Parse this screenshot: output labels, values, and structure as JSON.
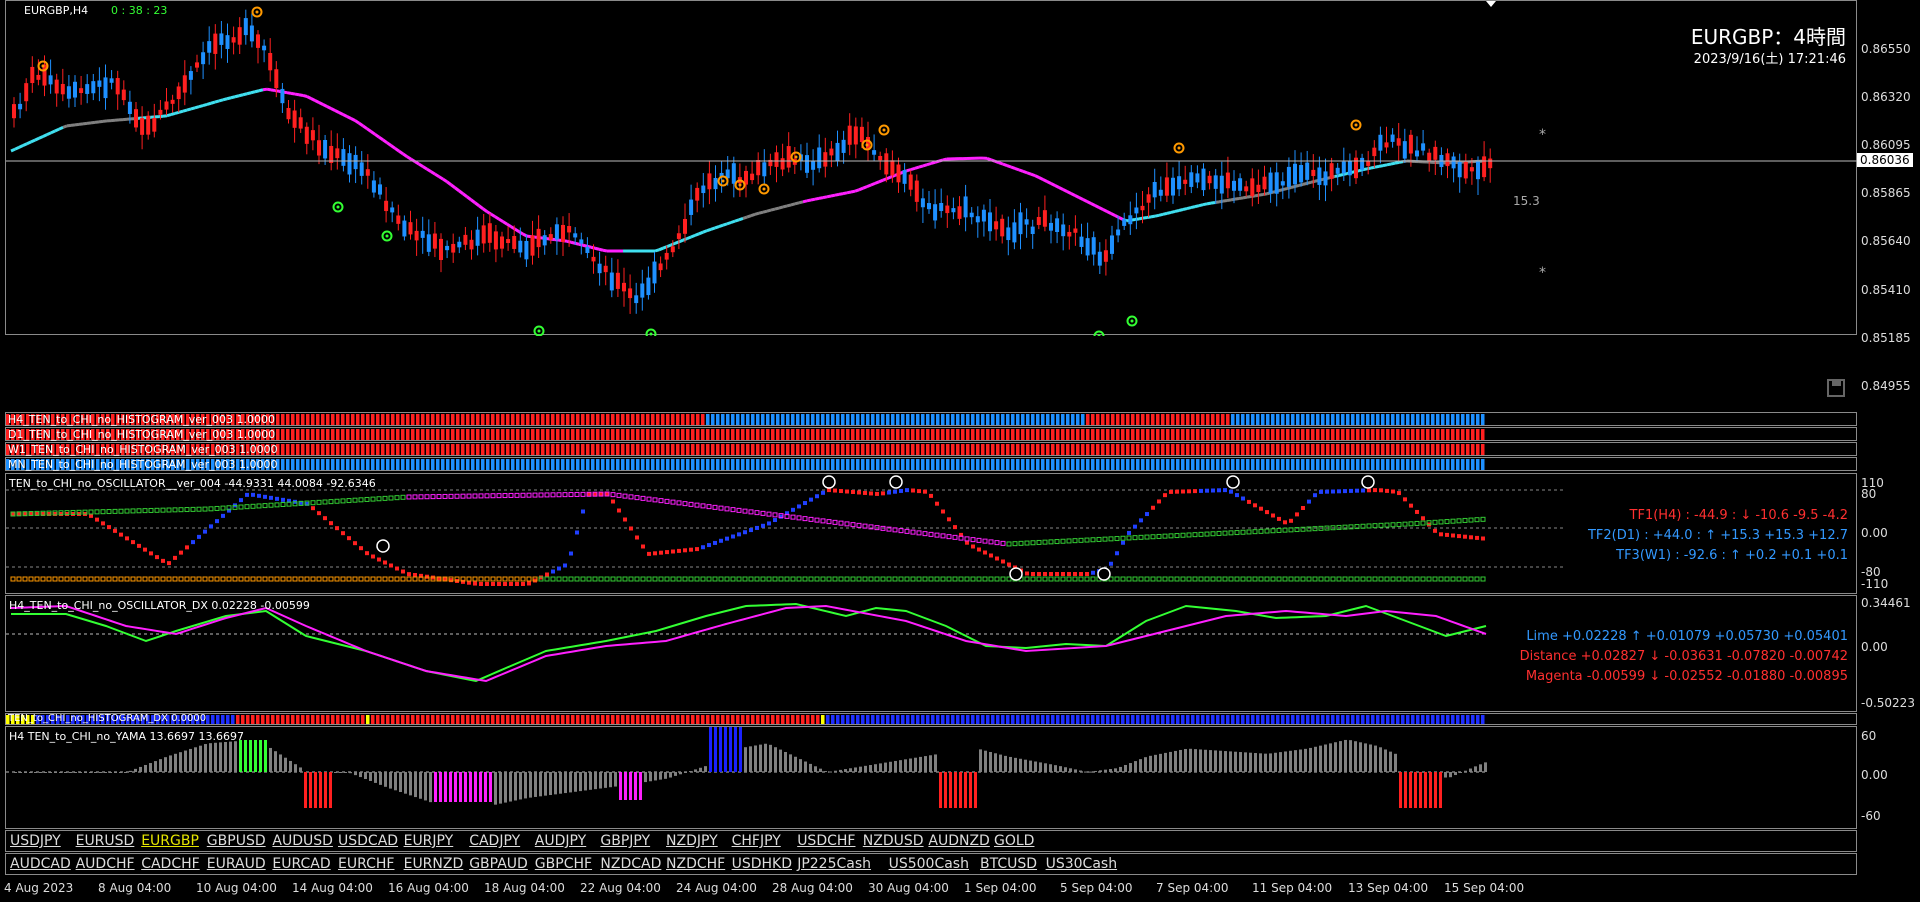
{
  "main": {
    "symbol_tf": "EURGBP,H4",
    "countdown": "0 : 38 : 23",
    "title": "EURGBP：4時間",
    "datetime": "2023/9/16(土) 17:21:46",
    "current_price": "0.86036",
    "right_label": "15.3",
    "price_ticks": [
      "0.86550",
      "0.86320",
      "0.86095",
      "0.85865",
      "0.85640",
      "0.85410",
      "0.85185",
      "0.84955"
    ],
    "save_icon": "floppy-disk-icon"
  },
  "histograms": [
    {
      "label": "H4_TEN_to_CHI_no_HISTOGRAM_ver_003 1.0000"
    },
    {
      "label": "D1_TEN_to_CHI_no_HISTOGRAM_ver_003 1.0000"
    },
    {
      "label": "W1_TEN_to_CHI_no_HISTOGRAM_ver_003 1.0000"
    },
    {
      "label": "MN_TEN_to_CHI_no_HISTOGRAM_ver_003 1.0000"
    }
  ],
  "oscillator": {
    "title": "TEN_to_CHI_no_OSCILLATOR__ver_004 -44.9331 44.0084 -92.6346",
    "tf1": "TF1(H4) : -44.9 : ↓  -10.6  -9.5  -4.2",
    "tf2": "TF2(D1) : +44.0 : ↑  +15.3 +15.3 +12.7",
    "tf3": "TF3(W1) : -92.6 : ↑  +0.2  +0.1  +0.1",
    "ticks": [
      "110",
      "80",
      "0.00",
      "-80",
      "-110"
    ]
  },
  "oscillator_dx": {
    "title": "H4_TEN_to_CHI_no_OSCILLATOR_DX 0.02228 -0.00599",
    "lime": "Lime +0.02228 ↑  +0.01079 +0.05730 +0.05401",
    "distance": "Distance +0.02827 ↓  -0.03631 -0.07820 -0.00742",
    "magenta": "Magenta -0.00599 ↓  -0.02552 -0.01880 -0.00895",
    "ticks": [
      "0.34461",
      "0.00",
      "-0.50223"
    ]
  },
  "hist_dx": {
    "label": "TEN_to_CHI_no_HISTOGRAM_DX 0.0000"
  },
  "yama": {
    "title": "H4  TEN_to_CHI_no_YAMA  13.6697  13.6697",
    "ticks": [
      "60",
      "0.00",
      "-60"
    ]
  },
  "symbols_row1": [
    "USDJPY",
    "EURUSD",
    "EURGBP",
    "GBPUSD",
    "AUDUSD",
    "USDCAD",
    "EURJPY",
    "CADJPY",
    "AUDJPY",
    "GBPJPY",
    "NZDJPY",
    "CHFJPY",
    "USDCHF",
    "NZDUSD",
    "AUDNZD",
    "GOLD"
  ],
  "active_symbol": "EURGBP",
  "symbols_row2": [
    "AUDCAD",
    "AUDCHF",
    "CADCHF",
    "EURAUD",
    "EURCAD",
    "EURCHF",
    "EURNZD",
    "GBPAUD",
    "GBPCHF",
    "NZDCAD",
    "NZDCHF",
    "USDHKD",
    "JP225Cash",
    "US500Cash",
    "BTCUSD",
    "US30Cash"
  ],
  "time_axis": [
    "4 Aug 2023",
    "8 Aug 04:00",
    "10 Aug 04:00",
    "14 Aug 04:00",
    "16 Aug 04:00",
    "18 Aug 04:00",
    "22 Aug 04:00",
    "24 Aug 04:00",
    "28 Aug 04:00",
    "30 Aug 04:00",
    "1 Sep 04:00",
    "5 Sep 04:00",
    "7 Sep 04:00",
    "11 Sep 04:00",
    "13 Sep 04:00",
    "15 Sep 04:00"
  ],
  "colors": {
    "bull": "#1e90ff",
    "bear": "#ff2020",
    "cyan": "#40e0f0",
    "magenta": "#ff20ff",
    "lime": "#33ff33",
    "gray": "#808080"
  }
}
